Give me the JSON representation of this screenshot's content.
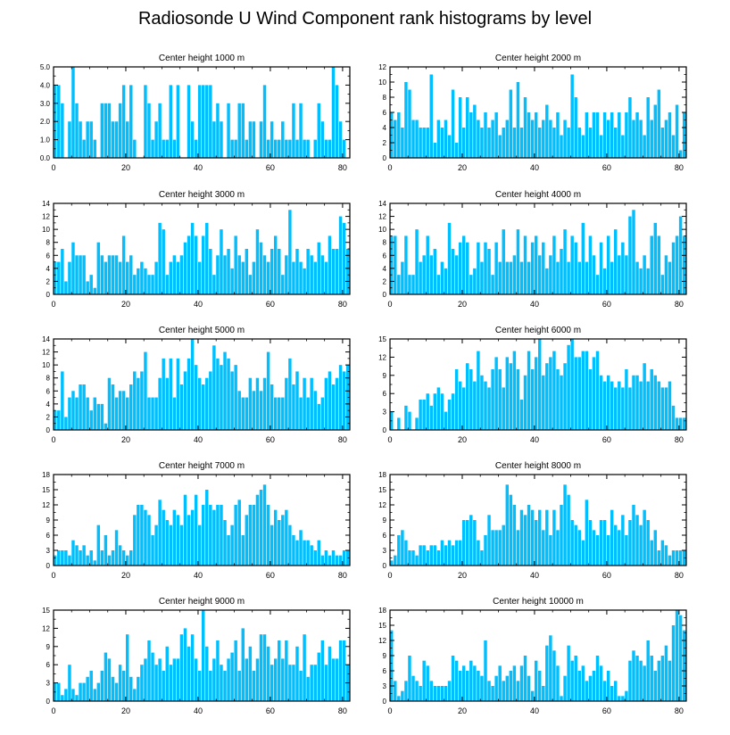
{
  "title": "Radiosonde U Wind Component rank histograms by level",
  "colors": {
    "bar": "#00BFFF",
    "axis": "#000000"
  },
  "chart_data": [
    {
      "type": "bar",
      "title": "Center height 1000 m",
      "ylim": [
        0,
        5
      ],
      "yticks": [
        0,
        1,
        2,
        3,
        4,
        5
      ],
      "ytick_labels": [
        "0.0",
        "1.0",
        "2.0",
        "3.0",
        "4.0",
        "5.0"
      ],
      "xlim": [
        0,
        82
      ],
      "xticks": [
        0,
        20,
        40,
        60,
        80
      ],
      "values": [
        4,
        4,
        3,
        0,
        2,
        5,
        3,
        2,
        1,
        2,
        2,
        1,
        0,
        3,
        3,
        3,
        2,
        2,
        3,
        4,
        2,
        4,
        1,
        0,
        0,
        4,
        3,
        1,
        2,
        3,
        1,
        1,
        4,
        1,
        4,
        0,
        0,
        4,
        2,
        1,
        4,
        4,
        4,
        4,
        2,
        3,
        2,
        0,
        3,
        1,
        1,
        3,
        3,
        1,
        2,
        2,
        0,
        2,
        4,
        1,
        2,
        1,
        1,
        2,
        1,
        1,
        3,
        1,
        3,
        1,
        1,
        0,
        1,
        3,
        2,
        1,
        1,
        5,
        4,
        2,
        1
      ]
    },
    {
      "type": "bar",
      "title": "Center height 2000 m",
      "ylim": [
        0,
        12
      ],
      "yticks": [
        0,
        2,
        4,
        6,
        8,
        10,
        12
      ],
      "ytick_labels": [
        "0",
        "2",
        "4",
        "6",
        "8",
        "10",
        "12"
      ],
      "xlim": [
        0,
        82
      ],
      "xticks": [
        0,
        20,
        40,
        60,
        80
      ],
      "values": [
        6,
        5,
        6,
        4,
        10,
        9,
        5,
        5,
        4,
        4,
        4,
        11,
        2,
        5,
        4,
        5,
        3,
        9,
        2,
        8,
        4,
        8,
        6,
        7,
        5,
        4,
        6,
        4,
        5,
        6,
        3,
        4,
        5,
        9,
        4,
        10,
        4,
        8,
        6,
        5,
        6,
        4,
        5,
        7,
        5,
        4,
        6,
        3,
        5,
        4,
        11,
        8,
        4,
        3,
        6,
        4,
        6,
        6,
        3,
        6,
        5,
        6,
        4,
        6,
        3,
        6,
        8,
        5,
        6,
        5,
        3,
        8,
        5,
        7,
        9,
        4,
        5,
        6,
        3,
        7,
        1,
        6
      ]
    },
    {
      "type": "bar",
      "title": "Center height 3000 m",
      "ylim": [
        0,
        14
      ],
      "yticks": [
        0,
        2,
        4,
        6,
        8,
        10,
        12,
        14
      ],
      "ytick_labels": [
        "0",
        "2",
        "4",
        "6",
        "8",
        "10",
        "12",
        "14"
      ],
      "xlim": [
        0,
        82
      ],
      "xticks": [
        0,
        20,
        40,
        60,
        80
      ],
      "values": [
        5,
        5,
        7,
        2,
        5,
        8,
        6,
        6,
        6,
        2,
        3,
        1,
        8,
        6,
        5,
        6,
        6,
        6,
        5,
        9,
        5,
        6,
        3,
        4,
        5,
        4,
        3,
        3,
        5,
        11,
        10,
        3,
        5,
        6,
        5,
        6,
        8,
        9,
        11,
        9,
        5,
        9,
        11,
        7,
        3,
        6,
        10,
        6,
        7,
        4,
        9,
        6,
        5,
        7,
        3,
        5,
        10,
        8,
        6,
        5,
        7,
        9,
        7,
        3,
        6,
        13,
        5,
        7,
        5,
        4,
        7,
        6,
        5,
        8,
        6,
        5,
        9,
        7,
        7,
        12,
        11,
        7
      ]
    },
    {
      "type": "bar",
      "title": "Center height 4000 m",
      "ylim": [
        0,
        14
      ],
      "yticks": [
        0,
        2,
        4,
        6,
        8,
        10,
        12,
        14
      ],
      "ytick_labels": [
        "0",
        "2",
        "4",
        "6",
        "8",
        "10",
        "12",
        "14"
      ],
      "xlim": [
        0,
        82
      ],
      "xticks": [
        0,
        20,
        40,
        60,
        80
      ],
      "values": [
        9,
        9,
        3,
        5,
        9,
        3,
        3,
        10,
        5,
        6,
        9,
        6,
        7,
        3,
        5,
        4,
        11,
        7,
        6,
        8,
        9,
        8,
        3,
        4,
        8,
        5,
        8,
        7,
        3,
        8,
        5,
        10,
        5,
        5,
        6,
        10,
        5,
        9,
        5,
        8,
        9,
        6,
        8,
        4,
        6,
        9,
        5,
        7,
        10,
        5,
        9,
        8,
        5,
        11,
        5,
        9,
        6,
        3,
        8,
        4,
        9,
        5,
        10,
        6,
        8,
        6,
        12,
        13,
        5,
        4,
        6,
        4,
        9,
        11,
        9,
        3,
        6,
        5,
        8,
        9,
        12,
        9
      ]
    },
    {
      "type": "bar",
      "title": "Center height 5000 m",
      "ylim": [
        0,
        14
      ],
      "yticks": [
        0,
        2,
        4,
        6,
        8,
        10,
        12,
        14
      ],
      "ytick_labels": [
        "0",
        "2",
        "4",
        "6",
        "8",
        "10",
        "12",
        "14"
      ],
      "xlim": [
        0,
        82
      ],
      "xticks": [
        0,
        20,
        40,
        60,
        80
      ],
      "values": [
        3,
        3,
        9,
        2,
        5,
        6,
        5,
        7,
        7,
        5,
        3,
        5,
        4,
        4,
        1,
        8,
        7,
        5,
        6,
        6,
        5,
        7,
        9,
        8,
        9,
        12,
        5,
        5,
        5,
        8,
        11,
        8,
        11,
        5,
        11,
        7,
        9,
        11,
        14,
        10,
        8,
        7,
        8,
        9,
        13,
        11,
        10,
        12,
        11,
        9,
        10,
        6,
        5,
        5,
        8,
        6,
        8,
        6,
        8,
        12,
        7,
        5,
        5,
        5,
        8,
        11,
        7,
        9,
        5,
        8,
        5,
        8,
        6,
        4,
        5,
        8,
        9,
        7,
        8,
        10,
        9,
        10
      ]
    },
    {
      "type": "bar",
      "title": "Center height 6000 m",
      "ylim": [
        0,
        15
      ],
      "yticks": [
        0,
        3,
        6,
        9,
        12,
        15
      ],
      "ytick_labels": [
        "0",
        "3",
        "6",
        "9",
        "12",
        "15"
      ],
      "xlim": [
        0,
        82
      ],
      "xticks": [
        0,
        20,
        40,
        60,
        80
      ],
      "values": [
        3,
        0,
        2,
        0,
        4,
        3,
        0,
        2,
        5,
        5,
        6,
        4,
        6,
        7,
        6,
        3,
        5,
        6,
        10,
        8,
        7,
        11,
        10,
        8,
        13,
        9,
        8,
        7,
        10,
        12,
        10,
        7,
        12,
        11,
        13,
        10,
        5,
        9,
        13,
        10,
        12,
        15,
        9,
        11,
        12,
        13,
        10,
        9,
        11,
        14,
        15,
        12,
        12,
        13,
        13,
        10,
        12,
        13,
        9,
        8,
        9,
        8,
        7,
        8,
        7,
        10,
        7,
        9,
        9,
        8,
        11,
        8,
        10,
        9,
        8,
        7,
        7,
        8,
        4,
        2,
        2,
        2
      ]
    },
    {
      "type": "bar",
      "title": "Center height 7000 m",
      "ylim": [
        0,
        18
      ],
      "yticks": [
        0,
        3,
        6,
        9,
        12,
        15,
        18
      ],
      "ytick_labels": [
        "0",
        "3",
        "6",
        "9",
        "12",
        "15",
        "18"
      ],
      "xlim": [
        0,
        82
      ],
      "xticks": [
        0,
        20,
        40,
        60,
        80
      ],
      "values": [
        2,
        3,
        3,
        3,
        2,
        5,
        4,
        3,
        4,
        2,
        3,
        1,
        8,
        3,
        6,
        2,
        3,
        7,
        4,
        3,
        2,
        3,
        10,
        12,
        12,
        11,
        10,
        6,
        8,
        13,
        11,
        9,
        8,
        11,
        10,
        8,
        14,
        10,
        11,
        14,
        8,
        12,
        15,
        12,
        11,
        12,
        12,
        9,
        6,
        8,
        12,
        13,
        6,
        10,
        12,
        12,
        14,
        15,
        16,
        12,
        8,
        11,
        9,
        10,
        11,
        8,
        6,
        5,
        7,
        5,
        5,
        4,
        3,
        5,
        2,
        3,
        2,
        3,
        2,
        2,
        3,
        3
      ]
    },
    {
      "type": "bar",
      "title": "Center height 8000 m",
      "ylim": [
        0,
        18
      ],
      "yticks": [
        0,
        3,
        6,
        9,
        12,
        15,
        18
      ],
      "ytick_labels": [
        "0",
        "3",
        "6",
        "9",
        "12",
        "15",
        "18"
      ],
      "xlim": [
        0,
        82
      ],
      "xticks": [
        0,
        20,
        40,
        60,
        80
      ],
      "values": [
        1,
        2,
        6,
        7,
        5,
        3,
        3,
        2,
        4,
        4,
        3,
        4,
        4,
        3,
        5,
        4,
        5,
        4,
        5,
        5,
        9,
        9,
        10,
        9,
        5,
        3,
        6,
        10,
        7,
        7,
        7,
        8,
        16,
        14,
        12,
        7,
        11,
        10,
        12,
        11,
        9,
        11,
        7,
        11,
        6,
        11,
        7,
        12,
        16,
        14,
        9,
        8,
        7,
        5,
        13,
        9,
        7,
        6,
        9,
        9,
        6,
        11,
        8,
        7,
        10,
        6,
        9,
        12,
        10,
        8,
        11,
        9,
        5,
        7,
        3,
        5,
        4,
        2,
        3,
        3,
        3,
        3
      ]
    },
    {
      "type": "bar",
      "title": "Center height 9000 m",
      "ylim": [
        0,
        15
      ],
      "yticks": [
        0,
        3,
        6,
        9,
        12,
        15
      ],
      "ytick_labels": [
        "0",
        "3",
        "6",
        "9",
        "12",
        "15"
      ],
      "xlim": [
        0,
        82
      ],
      "xticks": [
        0,
        20,
        40,
        60,
        80
      ],
      "values": [
        3,
        3,
        1,
        2,
        6,
        2,
        1,
        3,
        3,
        4,
        5,
        2,
        3,
        5,
        8,
        7,
        4,
        3,
        6,
        5,
        11,
        4,
        2,
        4,
        6,
        7,
        10,
        8,
        6,
        7,
        5,
        9,
        6,
        7,
        7,
        11,
        12,
        9,
        11,
        7,
        5,
        15,
        9,
        5,
        7,
        10,
        6,
        5,
        7,
        8,
        10,
        5,
        12,
        7,
        9,
        5,
        7,
        11,
        11,
        9,
        6,
        7,
        10,
        7,
        10,
        6,
        6,
        9,
        5,
        11,
        4,
        6,
        6,
        8,
        10,
        6,
        9,
        7,
        7,
        10,
        10,
        6
      ]
    },
    {
      "type": "bar",
      "title": "Center height 10000 m",
      "ylim": [
        0,
        18
      ],
      "yticks": [
        0,
        3,
        6,
        9,
        12,
        15,
        18
      ],
      "ytick_labels": [
        "0",
        "3",
        "6",
        "9",
        "12",
        "15",
        "18"
      ],
      "xlim": [
        0,
        82
      ],
      "xticks": [
        0,
        20,
        40,
        60,
        80
      ],
      "values": [
        14,
        4,
        1,
        2,
        4,
        9,
        5,
        4,
        3,
        8,
        7,
        4,
        3,
        3,
        3,
        3,
        4,
        9,
        8,
        6,
        7,
        6,
        8,
        7,
        6,
        5,
        12,
        4,
        3,
        5,
        7,
        4,
        5,
        6,
        7,
        4,
        7,
        9,
        5,
        2,
        8,
        6,
        3,
        11,
        13,
        10,
        7,
        1,
        5,
        11,
        8,
        9,
        6,
        7,
        4,
        5,
        6,
        9,
        7,
        4,
        6,
        3,
        4,
        1,
        1,
        2,
        8,
        10,
        9,
        8,
        7,
        12,
        9,
        6,
        8,
        9,
        11,
        8,
        15,
        18,
        17,
        14
      ]
    }
  ]
}
